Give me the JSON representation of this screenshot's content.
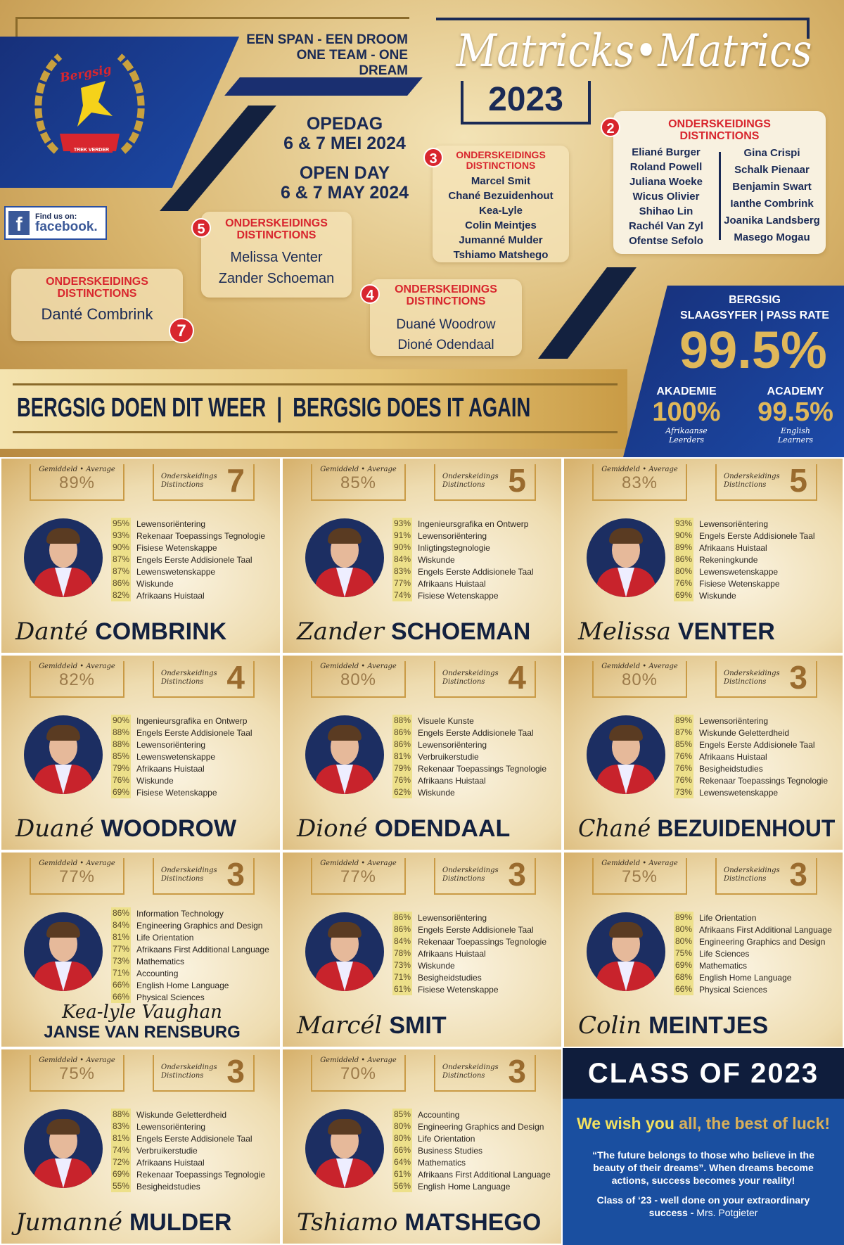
{
  "header": {
    "slogan_af": "EEN SPAN - EEN DROOM",
    "slogan_en": "ONE TEAM - ONE DREAM",
    "logo_text": "Bergsig",
    "logo_motto": "TREK VERDER",
    "open_day_af": "OPEDAG",
    "open_day_af_date": "6 & 7 MEI 2024",
    "open_day_en": "OPEN DAY",
    "open_day_en_date": "6 & 7 MAY 2024",
    "facebook_find": "Find us on:",
    "facebook_label": "facebook.",
    "title_script": "Matricks•Matrics",
    "year": "2023",
    "banner": "BERGSIG DOEN DIT WEER  |  BERGSIG DOES IT AGAIN"
  },
  "distinction_groups": [
    {
      "count": "2",
      "heading_af": "ONDERSKEIDINGS",
      "heading_en": "DISTINCTIONS",
      "names_left": [
        "Eliané Burger",
        "Roland Powell",
        "Juliana Woeke",
        "Wicus Olivier",
        "Shihao Lin",
        "Rachél Van Zyl",
        "Ofentse Sefolo"
      ],
      "names_right": [
        "Gina Crispi",
        "Schalk Pienaar",
        "Benjamin Swart",
        "Ianthe Combrink",
        "Joanika Landsberg",
        "Masego Mogau"
      ]
    },
    {
      "count": "3",
      "heading_af": "ONDERSKEIDINGS",
      "heading_en": "DISTINCTIONS",
      "names": [
        "Marcel Smit",
        "Chané Bezuidenhout",
        "Kea-Lyle",
        "Colin Meintjes",
        "Jumanné Mulder",
        "Tshiamo Matshego"
      ]
    },
    {
      "count": "5",
      "heading_af": "ONDERSKEIDINGS",
      "heading_en": "DISTINCTIONS",
      "names": [
        "Melissa Venter",
        "Zander Schoeman"
      ]
    },
    {
      "count": "7",
      "heading_af": "ONDERSKEIDINGS",
      "heading_en": "DISTINCTIONS",
      "names": [
        "Danté Combrink"
      ]
    },
    {
      "count": "4",
      "heading_af": "ONDERSKEIDINGS",
      "heading_en": "DISTINCTIONS",
      "names": [
        "Duané Woodrow",
        "Dioné Odendaal"
      ]
    }
  ],
  "pass_rate": {
    "school": "BERGSIG",
    "label": "SLAAGSYFER | PASS RATE",
    "value": "99.5%",
    "akademie_label": "AKADEMIE",
    "akademie_value": "100%",
    "akademie_sub": "Afrikaanse Leerders",
    "academy_label": "ACADEMY",
    "academy_value": "99.5%",
    "academy_sub": "English Learners"
  },
  "card_labels": {
    "average": "Gemiddeld • Average",
    "dist_af": "Onderskeidings",
    "dist_en": "Distinctions"
  },
  "cards": [
    {
      "average": "89%",
      "distinctions": "7",
      "first": "Danté",
      "surname": "COMBRINK",
      "subjects": [
        [
          "95%",
          "Lewensoriëntering"
        ],
        [
          "93%",
          "Rekenaar Toepassings Tegnologie"
        ],
        [
          "90%",
          "Fisiese Wetenskappe"
        ],
        [
          "87%",
          "Engels Eerste Addisionele Taal"
        ],
        [
          "87%",
          "Lewenswetenskappe"
        ],
        [
          "86%",
          "Wiskunde"
        ],
        [
          "82%",
          "Afrikaans Huistaal"
        ]
      ]
    },
    {
      "average": "85%",
      "distinctions": "5",
      "first": "Zander",
      "surname": "SCHOEMAN",
      "subjects": [
        [
          "93%",
          "Ingenieursgrafika en Ontwerp"
        ],
        [
          "91%",
          "Lewensoriëntering"
        ],
        [
          "90%",
          "Inligtingstegnologie"
        ],
        [
          "84%",
          "Wiskunde"
        ],
        [
          "83%",
          "Engels Eerste Addisionele Taal"
        ],
        [
          "77%",
          "Afrikaans Huistaal"
        ],
        [
          "74%",
          "Fisiese Wetenskappe"
        ]
      ]
    },
    {
      "average": "83%",
      "distinctions": "5",
      "first": "Melissa",
      "surname": "VENTER",
      "subjects": [
        [
          "93%",
          "Lewensoriëntering"
        ],
        [
          "90%",
          "Engels Eerste Addisionele Taal"
        ],
        [
          "89%",
          "Afrikaans Huistaal"
        ],
        [
          "86%",
          "Rekeningkunde"
        ],
        [
          "80%",
          "Lewenswetenskappe"
        ],
        [
          "76%",
          "Fisiese Wetenskappe"
        ],
        [
          "69%",
          "Wiskunde"
        ]
      ]
    },
    {
      "average": "82%",
      "distinctions": "4",
      "first": "Duané",
      "surname": "WOODROW",
      "subjects": [
        [
          "90%",
          "Ingenieursgrafika en Ontwerp"
        ],
        [
          "88%",
          "Engels Eerste Addisionele Taal"
        ],
        [
          "88%",
          "Lewensoriëntering"
        ],
        [
          "85%",
          "Lewenswetenskappe"
        ],
        [
          "79%",
          "Afrikaans Huistaal"
        ],
        [
          "76%",
          "Wiskunde"
        ],
        [
          "69%",
          "Fisiese Wetenskappe"
        ]
      ]
    },
    {
      "average": "80%",
      "distinctions": "4",
      "first": "Dioné",
      "surname": "ODENDAAL",
      "subjects": [
        [
          "88%",
          "Visuele Kunste"
        ],
        [
          "86%",
          "Engels Eerste Addisionele Taal"
        ],
        [
          "86%",
          "Lewensoriëntering"
        ],
        [
          "81%",
          "Verbruikerstudie"
        ],
        [
          "79%",
          "Rekenaar Toepassings Tegnologie"
        ],
        [
          "76%",
          "Afrikaans Huistaal"
        ],
        [
          "62%",
          "Wiskunde"
        ]
      ]
    },
    {
      "average": "80%",
      "distinctions": "3",
      "first": "Chané",
      "surname": "BEZUIDENHOUT",
      "subjects": [
        [
          "89%",
          "Lewensoriëntering"
        ],
        [
          "87%",
          "Wiskunde Geletterdheid"
        ],
        [
          "85%",
          "Engels Eerste Addisionele Taal"
        ],
        [
          "76%",
          "Afrikaans Huistaal"
        ],
        [
          "76%",
          "Besigheidstudies"
        ],
        [
          "76%",
          "Rekenaar Toepassings Tegnologie"
        ],
        [
          "73%",
          "Lewenswetenskappe"
        ]
      ]
    },
    {
      "average": "77%",
      "distinctions": "3",
      "first": "Kea-lyle Vaughan",
      "surname": "JANSE VAN RENSBURG",
      "subjects": [
        [
          "86%",
          "Information Technology"
        ],
        [
          "84%",
          "Engineering Graphics and Design"
        ],
        [
          "81%",
          "Life Orientation"
        ],
        [
          "77%",
          "Afrikaans First Additional Language"
        ],
        [
          "73%",
          "Mathematics"
        ],
        [
          "71%",
          "Accounting"
        ],
        [
          "66%",
          "English Home Language"
        ],
        [
          "66%",
          "Physical Sciences"
        ]
      ]
    },
    {
      "average": "77%",
      "distinctions": "3",
      "first": "Marcél",
      "surname": "SMIT",
      "subjects": [
        [
          "86%",
          "Lewensoriëntering"
        ],
        [
          "86%",
          "Engels Eerste Addisionele Taal"
        ],
        [
          "84%",
          "Rekenaar Toepassings Tegnologie"
        ],
        [
          "78%",
          "Afrikaans Huistaal"
        ],
        [
          "73%",
          "Wiskunde"
        ],
        [
          "71%",
          "Besigheidstudies"
        ],
        [
          "61%",
          "Fisiese Wetenskappe"
        ]
      ]
    },
    {
      "average": "75%",
      "distinctions": "3",
      "first": "Colin",
      "surname": "MEINTJES",
      "subjects": [
        [
          "89%",
          "Life Orientation"
        ],
        [
          "80%",
          "Afrikaans First Additional Language"
        ],
        [
          "80%",
          "Engineering Graphics and Design"
        ],
        [
          "75%",
          "Life Sciences"
        ],
        [
          "69%",
          "Mathematics"
        ],
        [
          "68%",
          "English Home Language"
        ],
        [
          "66%",
          "Physical Sciences"
        ]
      ]
    },
    {
      "average": "75%",
      "distinctions": "3",
      "first": "Jumanné",
      "surname": "MULDER",
      "subjects": [
        [
          "88%",
          "Wiskunde Geletterdheid"
        ],
        [
          "83%",
          "Lewensoriëntering"
        ],
        [
          "81%",
          "Engels Eerste Addisionele Taal"
        ],
        [
          "74%",
          "Verbruikerstudie"
        ],
        [
          "72%",
          "Afrikaans Huistaal"
        ],
        [
          "69%",
          "Rekenaar Toepassings Tegnologie"
        ],
        [
          "55%",
          "Besigheidstudies"
        ]
      ]
    },
    {
      "average": "70%",
      "distinctions": "3",
      "first": "Tshiamo",
      "surname": "MATSHEGO",
      "subjects": [
        [
          "85%",
          "Accounting"
        ],
        [
          "80%",
          "Engineering Graphics and Design"
        ],
        [
          "80%",
          "Life Orientation"
        ],
        [
          "66%",
          "Business Studies"
        ],
        [
          "64%",
          "Mathematics"
        ],
        [
          "61%",
          "Afrikaans First Additional Language"
        ],
        [
          "56%",
          "English Home Language"
        ]
      ]
    }
  ],
  "class_panel": {
    "title": "CLASS OF 2023",
    "wish_a": "We wish you ",
    "wish_b": "all, the best of luck!",
    "quote": "“The future belongs to those who believe in the beauty of their dreams”. When dreams become actions, success becomes your reality!",
    "closing": "Class of ‘23 -  well done on your extraordinary success - ",
    "author": "Mrs. Potgieter"
  },
  "colors": {
    "navy": "#13213f",
    "red": "#d8262e",
    "blue": "#1a4fa0",
    "gold": "#d9b56a"
  }
}
